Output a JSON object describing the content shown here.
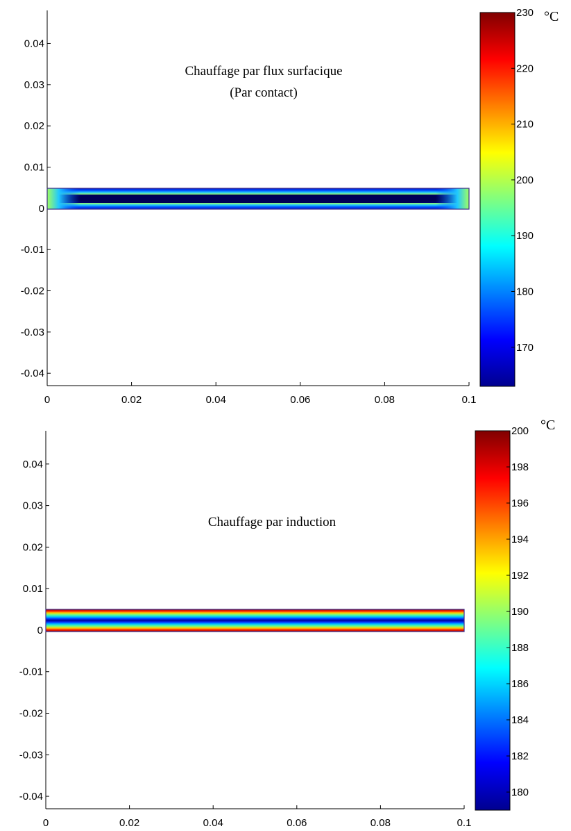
{
  "chart_data": [
    {
      "type": "heatmap",
      "title": "",
      "xlabel": "",
      "ylabel": "",
      "xlim": [
        0,
        0.1
      ],
      "ylim": [
        -0.043,
        0.048
      ],
      "x_ticks": [
        "0",
        "0.02",
        "0.04",
        "0.06",
        "0.08",
        "0.1"
      ],
      "y_ticks": [
        "0.04",
        "0.03",
        "0.02",
        "0.01",
        "0",
        "-0.01",
        "-0.02",
        "-0.03",
        "-0.04"
      ],
      "annotation_lines": [
        "Chauffage par flux surfacique",
        "(Par contact)"
      ],
      "domain": {
        "x": [
          0,
          0.1
        ],
        "y": [
          0,
          0.005
        ]
      },
      "pattern": "hot at ends and edges, cool core along length",
      "colorbar": {
        "unit": "°C",
        "range": [
          163,
          230
        ],
        "ticks": [
          "230",
          "220",
          "210",
          "200",
          "190",
          "180",
          "170"
        ],
        "colormap": "jet"
      }
    },
    {
      "type": "heatmap",
      "title": "",
      "xlabel": "",
      "ylabel": "",
      "xlim": [
        0,
        0.1
      ],
      "ylim": [
        -0.043,
        0.048
      ],
      "x_ticks": [
        "0",
        "0.02",
        "0.04",
        "0.06",
        "0.08",
        "0.1"
      ],
      "y_ticks": [
        "0.04",
        "0.03",
        "0.02",
        "0.01",
        "0",
        "-0.01",
        "-0.02",
        "-0.03",
        "-0.04"
      ],
      "annotation_lines": [
        "Chauffage par induction"
      ],
      "domain": {
        "x": [
          0,
          0.1
        ],
        "y": [
          0,
          0.005
        ]
      },
      "pattern": "horizontal bands: hot top and bottom surfaces, cool centre line",
      "colorbar": {
        "unit": "°C",
        "range": [
          179,
          200
        ],
        "ticks": [
          "200",
          "198",
          "196",
          "194",
          "192",
          "190",
          "188",
          "186",
          "184",
          "182",
          "180"
        ],
        "colormap": "jet"
      }
    }
  ]
}
